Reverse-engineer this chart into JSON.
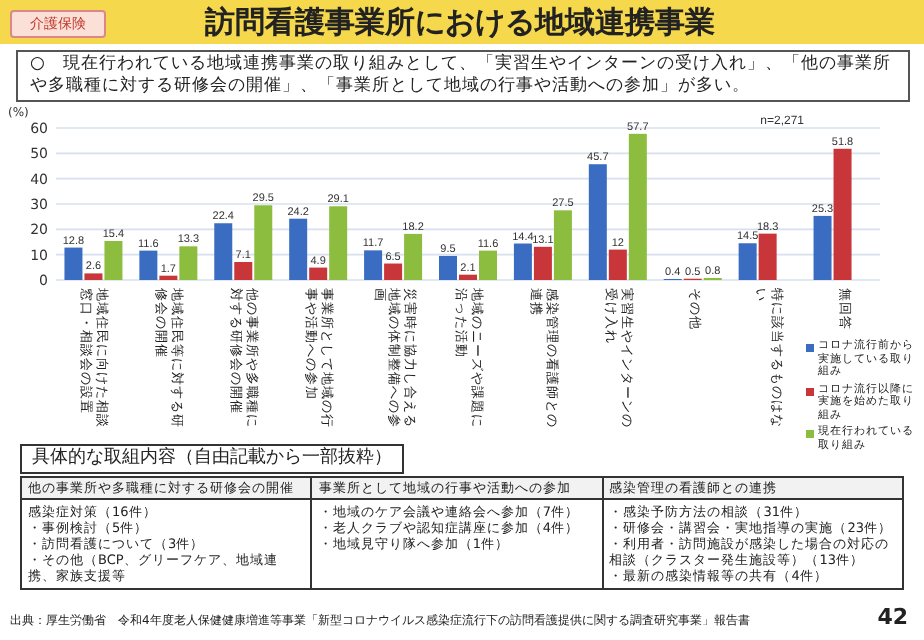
{
  "chart_data": {
    "type": "bar",
    "title": "訪問看護事業所における地域連携事業",
    "subtitle": "○　現在行われている地域連携事業の取り組みとして、「実習生やインターンの受け入れ」、「他の事業所や多職種に対する研修会の開催」、「事業所として地域の行事や活動への参加」が多い。",
    "ylabel": "(%)",
    "categories": [
      "地域住民に向けた相談窓口・相談会の設置",
      "地域住民等に対する研修会の開催",
      "他の事業所や多職種に対する研修会の開催",
      "事業所として地域の行事や活動への参加",
      "災害時に協力し合える地域の体制整備への参画",
      "地域のニーズや課題に沿った活動",
      "感染管理の看護師との連携",
      "実習生やインターンの受け入れ",
      "その他",
      "特に該当するものはない",
      "無回答"
    ],
    "series": [
      {
        "name": "コロナ流行前から実施している取り組み",
        "color": "#3a6cc2",
        "values": [
          12.8,
          11.6,
          22.4,
          24.2,
          11.7,
          9.5,
          14.4,
          45.7,
          0.4,
          14.5,
          25.3
        ]
      },
      {
        "name": "コロナ流行以降に実施を始めた取り組み",
        "color": "#c9363a",
        "values": [
          2.6,
          1.7,
          7.1,
          4.9,
          6.5,
          2.1,
          13.1,
          12,
          0.5,
          18.3,
          51.8
        ]
      },
      {
        "name": "現在行われている取り組み",
        "color": "#8dbd3e",
        "values": [
          15.4,
          13.3,
          29.5,
          29.1,
          18.2,
          11.6,
          27.5,
          57.7,
          0.8,
          null,
          null
        ]
      }
    ],
    "ylim": [
      0,
      60
    ],
    "yticks": [
      0,
      10,
      20,
      30,
      40,
      50,
      60
    ],
    "grid": "y",
    "legend": "right",
    "data_labels": true,
    "annotations": [
      "介護保険",
      "n=2,271",
      "具体的な取組内容（自由記載から一部抜粋）",
      "他の事業所や多職種に対する研修会の開催",
      "事業所として地域の行事や活動への参加",
      "感染管理の看護師との連携",
      "感染症対策（16件）",
      "・事例検討（5件）",
      "・訪問看護について（3件）",
      "・その他（BCP、グリーフケア、地域連携、家族支援等",
      "・地域のケア会議や連絡会へ参加（7件）",
      "・老人クラブや認知症講座に参加（4件）",
      "・地域見守り隊へ参加（1件）",
      "・感染予防方法の相談（31件）",
      "・研修会・講習会・実地指導の実施（23件）",
      "・利用者・訪問施設が感染した場合の対応の相談（クラスター発生施設等）（13件）",
      "・最新の感染情報等の共有（4件）",
      "出典：厚生労働省　令和4年度老人保健健康増進等事業「新型コロナウイルス感染症流行下の訪問看護提供に関する調査研究事業」報告書",
      "42"
    ]
  }
}
